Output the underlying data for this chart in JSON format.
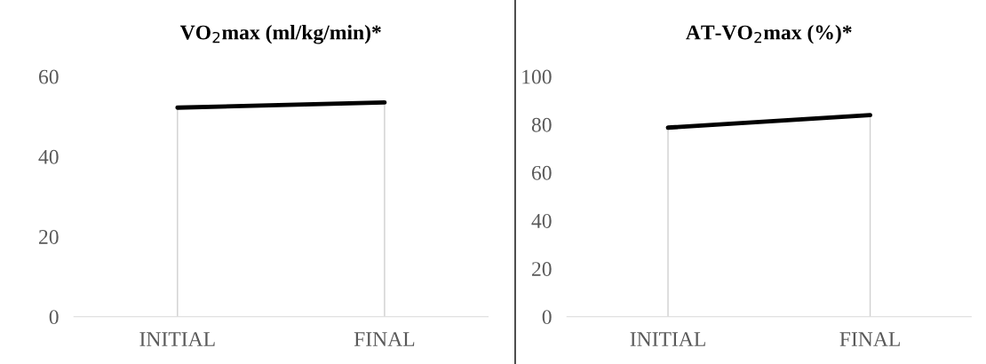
{
  "chart_data": [
    {
      "type": "line",
      "title": "VO$_{2}$max (ml/kg/min)*",
      "categories": [
        "INITIAL",
        "FINAL"
      ],
      "ylim": [
        0,
        60
      ],
      "yticks": [
        0,
        20,
        40,
        60
      ],
      "grid": "x",
      "legend": false,
      "series": [
        {
          "color": "#000000",
          "values": [
            52.2,
            53.5
          ]
        }
      ]
    },
    {
      "type": "line",
      "title": "AT-VO$_{2}$max (%)*",
      "categories": [
        "INITIAL",
        "FINAL"
      ],
      "ylim": [
        0,
        100
      ],
      "yticks": [
        0,
        20,
        40,
        60,
        80,
        100
      ],
      "grid": "x",
      "legend": false,
      "series": [
        {
          "color": "#000000",
          "values": [
            78.7,
            83.9
          ]
        }
      ]
    }
  ]
}
